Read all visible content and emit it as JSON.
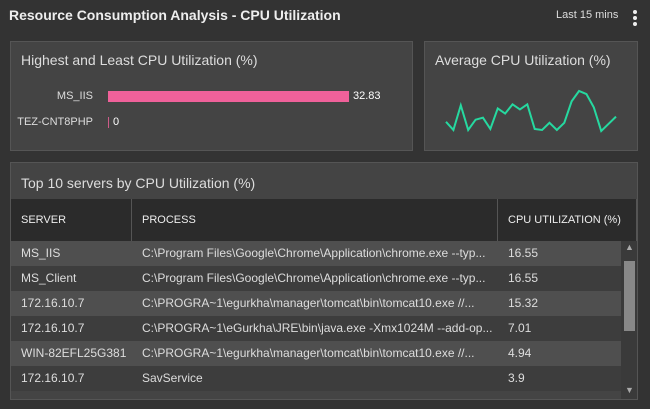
{
  "header": {
    "title": "Resource Consumption Analysis - CPU Utilization",
    "time_range": "Last 15 mins"
  },
  "chart_data": [
    {
      "type": "bar",
      "orientation": "horizontal",
      "title": "Highest and Least CPU Utilization (%)",
      "categories": [
        "MS_IIS",
        "TEZ-CNT8PHP"
      ],
      "values": [
        32.83,
        0
      ],
      "color": "#f0619a"
    },
    {
      "type": "line",
      "title": "Average CPU Utilization (%)",
      "values": [
        10,
        2,
        26,
        2,
        12,
        14,
        3,
        23,
        18,
        27,
        22,
        27,
        3,
        2,
        9,
        2,
        9,
        30,
        40,
        37,
        24,
        1,
        8,
        15
      ],
      "color": "#26d9a0"
    }
  ],
  "table": {
    "title": "Top 10 servers by CPU Utilization (%)",
    "columns": [
      "SERVER",
      "PROCESS",
      "CPU UTILIZATION (%)"
    ],
    "rows": [
      [
        "MS_IIS",
        "C:\\Program Files\\Google\\Chrome\\Application\\chrome.exe --typ...",
        "16.55"
      ],
      [
        "MS_Client",
        "C:\\Program Files\\Google\\Chrome\\Application\\chrome.exe --typ...",
        "16.55"
      ],
      [
        "172.16.10.7",
        "C:\\PROGRA~1\\egurkha\\manager\\tomcat\\bin\\tomcat10.exe //...",
        "15.32"
      ],
      [
        "172.16.10.7",
        "C:\\PROGRA~1\\eGurkha\\JRE\\bin\\java.exe -Xmx1024M --add-op...",
        "7.01"
      ],
      [
        "WIN-82EFL25G381",
        "C:\\PROGRA~1\\egurkha\\manager\\tomcat\\bin\\tomcat10.exe //...",
        "4.94"
      ],
      [
        "172.16.10.7",
        "SavService",
        "3.9"
      ]
    ]
  }
}
